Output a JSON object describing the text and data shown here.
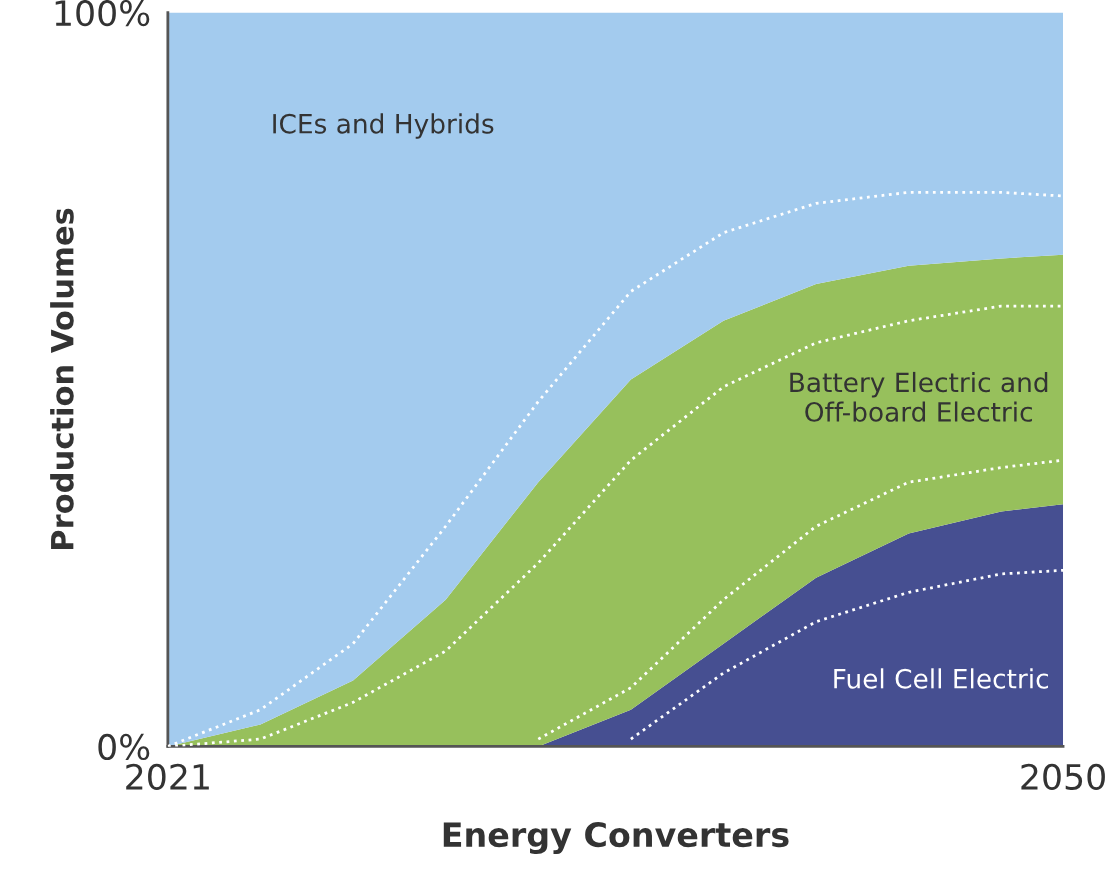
{
  "chart_data": {
    "type": "area",
    "stacked": true,
    "xlabel": "Energy Converters",
    "ylabel": "Production Volumes",
    "x": [
      2021,
      2024,
      2027,
      2030,
      2033,
      2036,
      2039,
      2042,
      2045,
      2048,
      2050
    ],
    "series": [
      {
        "name": "Fuel Cell Electric",
        "color": "#464f91",
        "values": [
          0,
          0,
          0,
          0,
          0,
          5,
          14,
          23,
          29,
          32,
          33
        ]
      },
      {
        "name": "Battery Electric and\nOff-board Electric",
        "color": "#97c05c",
        "values": [
          0,
          3,
          9,
          20,
          36,
          45,
          44,
          40,
          36.5,
          34.5,
          34
        ]
      },
      {
        "name": "ICEs and Hybrids",
        "color": "#a3cbee",
        "values": [
          100,
          97,
          91,
          80,
          64,
          50,
          42,
          37,
          34.5,
          33.5,
          33
        ]
      },
      {
        "type": "line",
        "line_style": "dotted",
        "color": "#ffffff",
        "values": [
          0,
          5,
          14,
          30,
          47,
          62,
          70,
          74,
          75.5,
          75.5,
          75
        ]
      },
      {
        "type": "line",
        "line_style": "dotted",
        "color": "#ffffff",
        "values": [
          0,
          1,
          6,
          13,
          25,
          39,
          49,
          55,
          58,
          60,
          60
        ]
      },
      {
        "type": "line",
        "line_style": "dotted",
        "color": "#ffffff",
        "values": [
          null,
          null,
          null,
          null,
          1,
          8,
          20,
          30,
          36,
          38,
          39
        ]
      },
      {
        "type": "line",
        "line_style": "dotted",
        "color": "#ffffff",
        "values": [
          null,
          null,
          null,
          null,
          null,
          1,
          10,
          17,
          21,
          23.5,
          24
        ]
      }
    ],
    "xlim": [
      2021,
      2050
    ],
    "xticks": [
      2021,
      2050
    ],
    "ylim": [
      0,
      100
    ],
    "yticks": [
      {
        "value": 0,
        "label": "0%"
      },
      {
        "value": 100,
        "label": "100%"
      }
    ],
    "grid": false,
    "legend": false
  }
}
